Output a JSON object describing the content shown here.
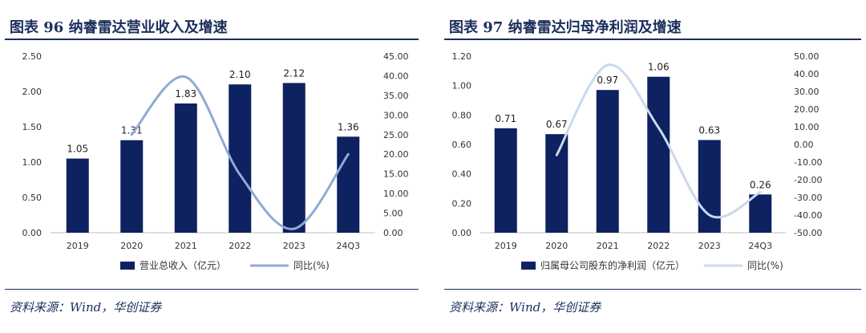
{
  "panels": [
    {
      "title": "图表 96   纳睿雷达营业收入及增速",
      "source": "资料来源：Wind，华创证券",
      "chart_data": {
        "type": "bar",
        "categories": [
          "2019",
          "2020",
          "2021",
          "2022",
          "2023",
          "24Q3"
        ],
        "series": [
          {
            "name": "营业总收入（亿元）",
            "type": "bar",
            "axis": "left",
            "color": "#0e2160",
            "values": [
              1.05,
              1.31,
              1.83,
              2.1,
              2.12,
              1.36
            ],
            "labels": [
              "1.05",
              "1.31",
              "1.83",
              "2.10",
              "2.12",
              "1.36"
            ]
          },
          {
            "name": "同比(%)",
            "type": "line",
            "axis": "right",
            "color": "#8eaad6",
            "values": [
              null,
              25.0,
              39.7,
              14.8,
              1.0,
              20.0
            ]
          }
        ],
        "y_left": {
          "min": 0,
          "max": 2.5,
          "ticks": [
            "0.00",
            "0.50",
            "1.00",
            "1.50",
            "2.00",
            "2.50"
          ]
        },
        "y_right": {
          "min": 0,
          "max": 45,
          "ticks": [
            "0.00",
            "5.00",
            "10.00",
            "15.00",
            "20.00",
            "25.00",
            "30.00",
            "35.00",
            "40.00",
            "45.00"
          ]
        },
        "grid": false,
        "legend_position": "bottom"
      }
    },
    {
      "title": "图表 97   纳睿雷达归母净利润及增速",
      "source": "资料来源：Wind，华创证券",
      "chart_data": {
        "type": "bar",
        "categories": [
          "2019",
          "2020",
          "2021",
          "2022",
          "2023",
          "24Q3"
        ],
        "series": [
          {
            "name": "归属母公司股东的净利润（亿元）",
            "type": "bar",
            "axis": "left",
            "color": "#0e2160",
            "values": [
              0.71,
              0.67,
              0.97,
              1.06,
              0.63,
              0.26
            ],
            "labels": [
              "0.71",
              "0.67",
              "0.97",
              "1.06",
              "0.63",
              "0.26"
            ]
          },
          {
            "name": "同比(%)",
            "type": "line",
            "axis": "right",
            "color": "#cbd9ec",
            "values": [
              null,
              -6.0,
              45.0,
              9.5,
              -40.0,
              -27.0
            ]
          }
        ],
        "y_left": {
          "min": 0,
          "max": 1.2,
          "ticks": [
            "0.00",
            "0.20",
            "0.40",
            "0.60",
            "0.80",
            "1.00",
            "1.20"
          ]
        },
        "y_right": {
          "min": -50,
          "max": 50,
          "ticks": [
            "-50.00",
            "-40.00",
            "-30.00",
            "-20.00",
            "-10.00",
            "0.00",
            "10.00",
            "20.00",
            "30.00",
            "40.00",
            "50.00"
          ]
        },
        "grid": false,
        "legend_position": "bottom"
      }
    }
  ]
}
